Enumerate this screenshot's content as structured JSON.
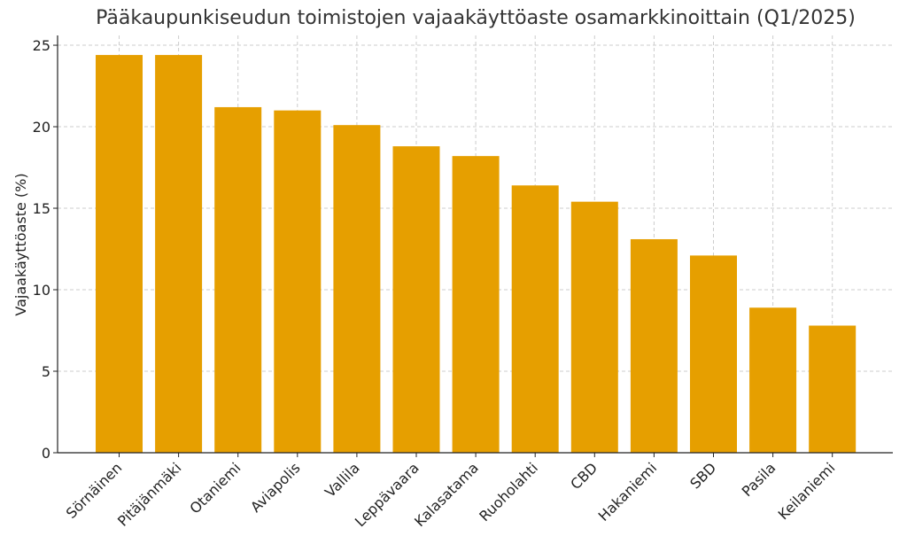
{
  "chart_data": {
    "type": "bar",
    "title": "Pääkaupunkiseudun toimistojen vajaakäyttöaste osamarkkinoittain (Q1/2025)",
    "xlabel": "",
    "ylabel": "Vajaakäyttöaste (%)",
    "categories": [
      "Sörnäinen",
      "Pitäjänmäki",
      "Otaniemi",
      "Aviapolis",
      "Vallila",
      "Leppävaara",
      "Kalasatama",
      "Ruoholahti",
      "CBD",
      "Hakaniemi",
      "SBD",
      "Pasila",
      "Keilaniemi"
    ],
    "values": [
      24.4,
      24.4,
      21.2,
      21.0,
      20.1,
      18.8,
      18.2,
      16.4,
      15.4,
      13.1,
      12.1,
      8.9,
      7.8
    ],
    "ylim": [
      0,
      25.6
    ],
    "yticks": [
      "0",
      "5",
      "10",
      "15",
      "20",
      "25"
    ],
    "bar_color": "#E69F00",
    "grid": true,
    "legend": "none"
  }
}
